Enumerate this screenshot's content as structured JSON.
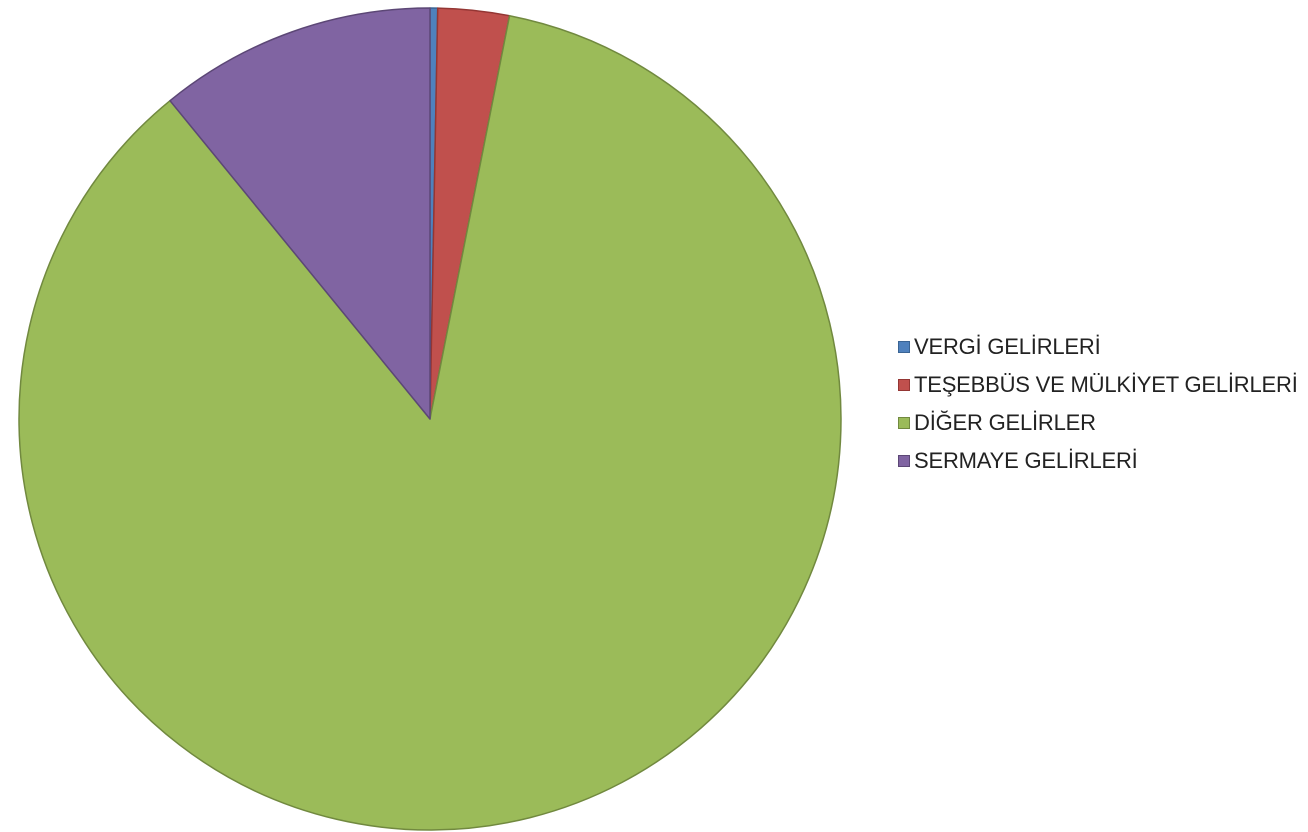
{
  "chart_data": {
    "type": "pie",
    "title": "",
    "start_angle_deg": 0,
    "direction": "clockwise",
    "legend_position": "right",
    "slices": [
      {
        "name": "VERGİ GELİRLERİ",
        "value": 0.3,
        "color": "#4F81BD",
        "stroke": "#3A6494"
      },
      {
        "name": "TEŞEBBÜS VE MÜLKİYET GELİRLERİ",
        "value": 2.8,
        "color": "#C0504D",
        "stroke": "#943634"
      },
      {
        "name": "DİĞER GELİRLER",
        "value": 86.0,
        "color": "#9BBB59",
        "stroke": "#71893F"
      },
      {
        "name": "SERMAYE GELİRLERİ",
        "value": 10.9,
        "color": "#8064A2",
        "stroke": "#5C4776"
      }
    ]
  }
}
